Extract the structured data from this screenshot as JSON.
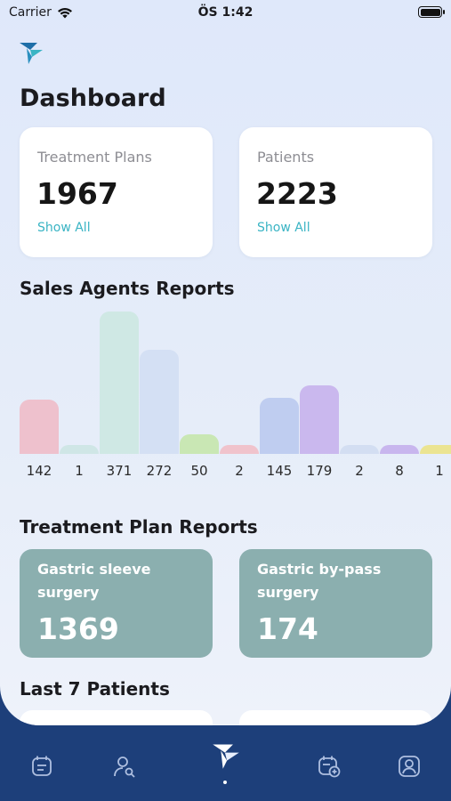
{
  "status": {
    "carrier": "Carrier",
    "time": "ÖS 1:42"
  },
  "page_title": "Dashboard",
  "summary": [
    {
      "label": "Treatment Plans",
      "value": "1967",
      "link": "Show All"
    },
    {
      "label": "Patients",
      "value": "2223",
      "link": "Show All"
    }
  ],
  "sections": {
    "sales": "Sales Agents Reports",
    "treatment": "Treatment Plan Reports",
    "last_patients": "Last 7 Patients"
  },
  "chart_data": {
    "type": "bar",
    "categories": [
      "",
      "",
      "",
      "",
      "",
      "",
      "",
      "",
      "",
      "",
      ""
    ],
    "values": [
      142,
      1,
      371,
      272,
      50,
      2,
      145,
      179,
      2,
      8,
      1
    ],
    "value_labels": [
      "142",
      "1",
      "371",
      "272",
      "50",
      "2",
      "145",
      "179",
      "2",
      "8",
      "1"
    ],
    "colors": [
      "#eec1cd",
      "#cfe6e6",
      "#cfe8e4",
      "#d4e0f4",
      "#c9e7b4",
      "#f0c3cc",
      "#bfcdf0",
      "#cab8ee",
      "#d3def2",
      "#c8b6ee",
      "#ebe492"
    ],
    "ylim": [
      0,
      371
    ],
    "grid": false
  },
  "treatment_reports": [
    {
      "name": "Gastric sleeve surgery",
      "count": "1369"
    },
    {
      "name": "Gastric by-pass surgery",
      "count": "174"
    }
  ],
  "nav": [
    {
      "icon": "treatment-plans-icon"
    },
    {
      "icon": "patient-search-icon"
    },
    {
      "icon": "app-logo-icon"
    },
    {
      "icon": "calendar-add-icon"
    },
    {
      "icon": "profile-icon"
    }
  ]
}
